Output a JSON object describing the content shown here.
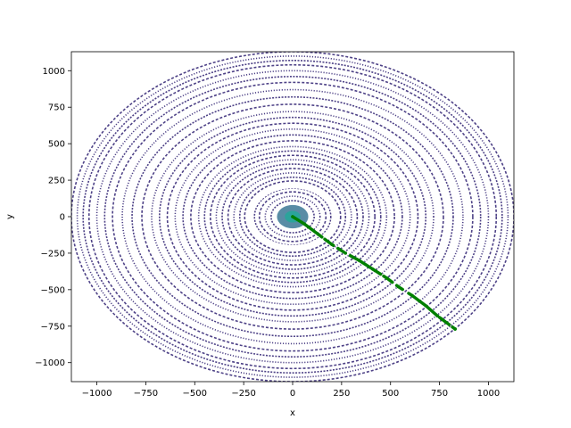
{
  "chart_data": {
    "type": "scatter",
    "title": "",
    "xlabel": "x",
    "ylabel": "y",
    "xlim": [
      -1130,
      1130
    ],
    "ylim": [
      -1130,
      1130
    ],
    "xticks": [
      -1000,
      -750,
      -500,
      -250,
      0,
      250,
      500,
      750,
      1000
    ],
    "yticks": [
      -1000,
      -750,
      -500,
      -250,
      0,
      250,
      500,
      750,
      1000
    ],
    "xtick_labels": [
      "−1000",
      "−750",
      "−500",
      "−250",
      "0",
      "250",
      "500",
      "750",
      "1000"
    ],
    "ytick_labels": [
      "−1000",
      "−750",
      "−500",
      "−250",
      "0",
      "250",
      "500",
      "750",
      "1000"
    ],
    "grid": false,
    "series": [
      {
        "kind": "spiral-rings",
        "color": "#3b2d7a",
        "inner_fill_colors": [
          "#2f6f8f",
          "#26a69a"
        ],
        "ring_radii": [
          110,
          140,
          170,
          195,
          220,
          245,
          270,
          300,
          330,
          360,
          390,
          420,
          450,
          480,
          520,
          560,
          600,
          640,
          680,
          720,
          770,
          820,
          870,
          920,
          960,
          1000,
          1040,
          1070,
          1100,
          1130
        ],
        "gap_ring_radius": 215,
        "center_glow_radius": 80
      },
      {
        "kind": "trajectory",
        "color": "#008000",
        "points": [
          [
            0,
            0
          ],
          [
            60,
            -50
          ],
          [
            130,
            -120
          ],
          [
            200,
            -190
          ],
          [
            270,
            -250
          ],
          [
            340,
            -300
          ],
          [
            410,
            -360
          ],
          [
            480,
            -420
          ],
          [
            540,
            -480
          ],
          [
            610,
            -540
          ],
          [
            680,
            -610
          ],
          [
            740,
            -680
          ],
          [
            760,
            -700
          ],
          [
            800,
            -740
          ],
          [
            830,
            -770
          ]
        ]
      }
    ]
  }
}
